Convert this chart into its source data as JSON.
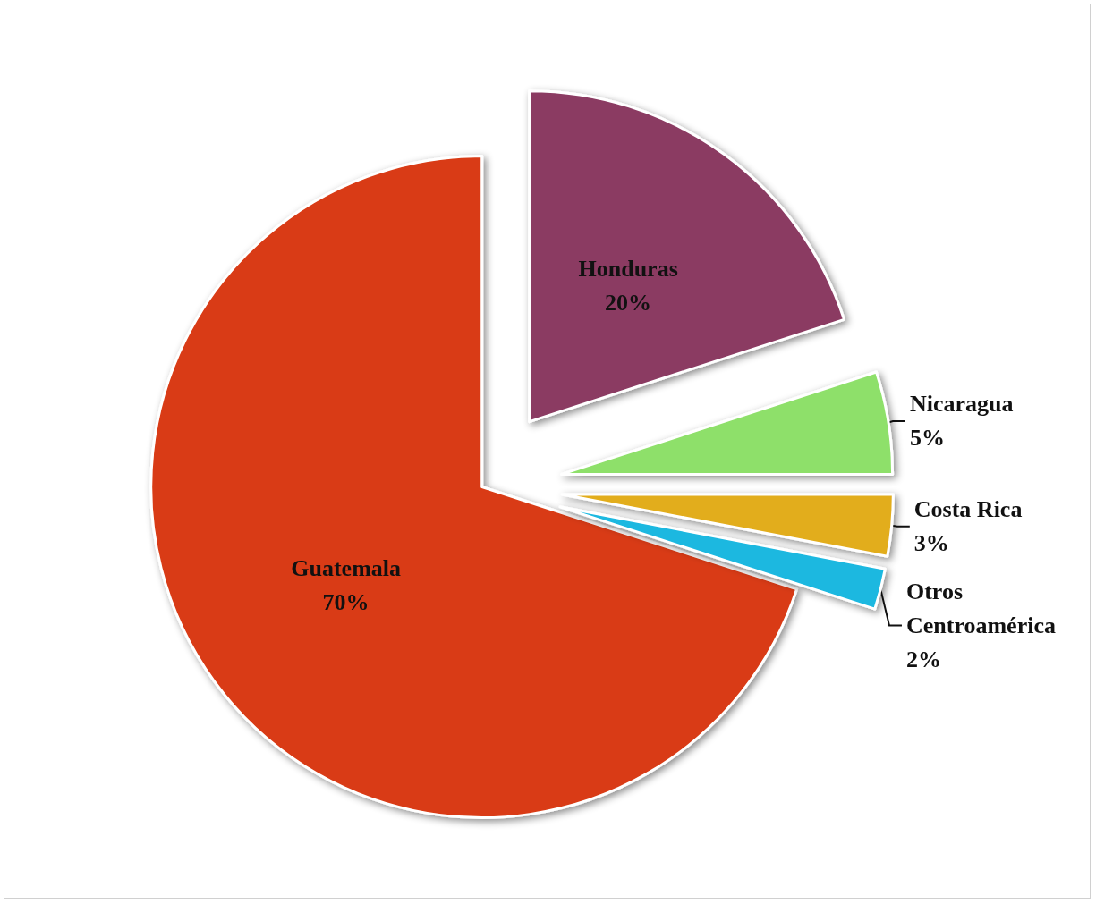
{
  "chart_data": {
    "type": "pie",
    "categories": [
      "Honduras",
      "Nicaragua",
      "Costa Rica",
      "Otros\nCentroamérica",
      "Guatemala"
    ],
    "values": [
      20,
      5,
      3,
      2,
      70
    ],
    "colors": [
      "#8b3a62",
      "#8ee06a",
      "#e2ad1c",
      "#1ab8e0",
      "#d93a12"
    ],
    "value_labels": [
      "20%",
      "5%",
      "3%",
      "2%",
      "70%"
    ],
    "legend": false
  }
}
